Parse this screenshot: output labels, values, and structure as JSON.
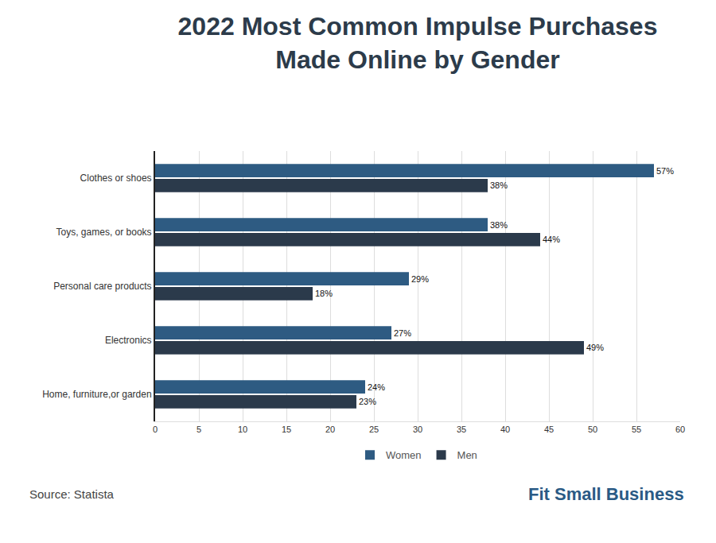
{
  "chart_data": {
    "type": "bar",
    "title": "2022 Most Common Impulse Purchases\nMade Online by Gender",
    "orientation": "horizontal",
    "categories": [
      "Clothes or shoes",
      "Toys, games, or books",
      "Personal care products",
      "Electronics",
      "Home, furniture,or garden"
    ],
    "series": [
      {
        "name": "Women",
        "color": "#2e5b82",
        "values": [
          57,
          38,
          29,
          27,
          24
        ],
        "value_labels": [
          "57%",
          "38%",
          "29%",
          "27%",
          "24%"
        ]
      },
      {
        "name": "Men",
        "color": "#2b3a4b",
        "values": [
          38,
          44,
          18,
          49,
          23
        ],
        "value_labels": [
          "38%",
          "44%",
          "18%",
          "49%",
          "23%"
        ]
      }
    ],
    "xlim": [
      0,
      60
    ],
    "xticks": [
      0,
      5,
      10,
      15,
      20,
      25,
      30,
      35,
      40,
      45,
      50,
      55,
      60
    ],
    "grid": true,
    "data_labels": true,
    "legend": "bottom",
    "annotations": [
      "Source: Statista",
      "Fit Small Business"
    ]
  }
}
